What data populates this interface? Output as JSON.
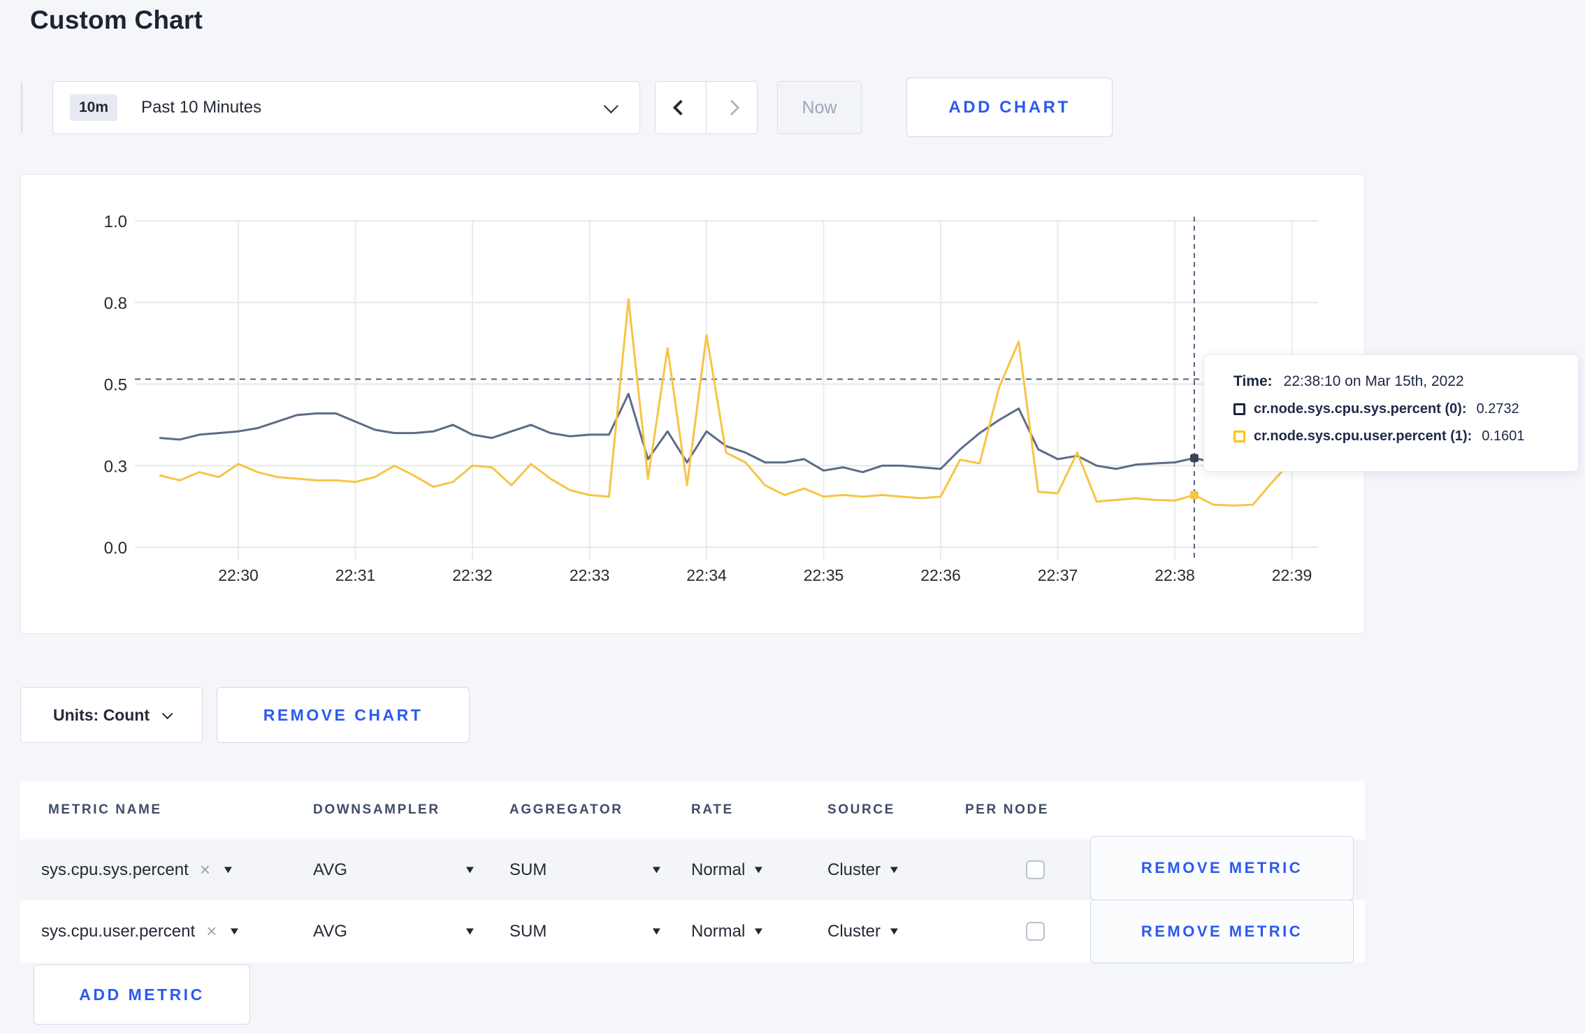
{
  "page": {
    "title": "Custom Chart"
  },
  "toolbar": {
    "range_badge": "10m",
    "range_label": "Past 10 Minutes",
    "now_label": "Now",
    "add_chart_label": "ADD CHART"
  },
  "icons": {
    "close_x": "×",
    "caret_down": "▼"
  },
  "chart_data": {
    "type": "line",
    "title": "",
    "x_axis": {
      "tick_labels": [
        "22:30",
        "22:31",
        "22:32",
        "22:33",
        "22:34",
        "22:35",
        "22:36",
        "22:37",
        "22:38",
        "22:39"
      ]
    },
    "y_axis": {
      "tick_labels": [
        "0.0",
        "0.3",
        "0.5",
        "0.8",
        "1.0"
      ],
      "tick_values": [
        0,
        0.25,
        0.5,
        0.75,
        1.0
      ]
    },
    "ylim": [
      0,
      1
    ],
    "grid": true,
    "start_time": "22:29:20",
    "start_offset_minutes": -0.6667,
    "interval_seconds": 10,
    "series": [
      {
        "name": "cr.node.sys.cpu.sys.percent",
        "color": "#5C6B89",
        "values": [
          0.335,
          0.33,
          0.345,
          0.35,
          0.355,
          0.365,
          0.385,
          0.405,
          0.41,
          0.41,
          0.385,
          0.36,
          0.35,
          0.35,
          0.355,
          0.375,
          0.345,
          0.335,
          0.355,
          0.375,
          0.35,
          0.34,
          0.345,
          0.345,
          0.47,
          0.27,
          0.355,
          0.26,
          0.355,
          0.31,
          0.29,
          0.26,
          0.26,
          0.27,
          0.235,
          0.245,
          0.23,
          0.25,
          0.25,
          0.245,
          0.24,
          0.3,
          0.35,
          0.39,
          0.425,
          0.3,
          0.27,
          0.28,
          0.25,
          0.24,
          0.253,
          0.257,
          0.26,
          0.2732,
          0.26,
          0.29,
          0.285,
          0.295,
          0.29,
          0.315
        ]
      },
      {
        "name": "cr.node.sys.cpu.user.percent",
        "color": "#F7C545",
        "values": [
          0.22,
          0.205,
          0.23,
          0.215,
          0.255,
          0.23,
          0.215,
          0.21,
          0.205,
          0.205,
          0.2,
          0.215,
          0.25,
          0.22,
          0.185,
          0.2,
          0.25,
          0.245,
          0.19,
          0.255,
          0.21,
          0.175,
          0.16,
          0.155,
          0.76,
          0.21,
          0.61,
          0.19,
          0.65,
          0.29,
          0.26,
          0.19,
          0.16,
          0.18,
          0.155,
          0.16,
          0.155,
          0.16,
          0.155,
          0.15,
          0.155,
          0.268,
          0.257,
          0.49,
          0.63,
          0.17,
          0.165,
          0.29,
          0.14,
          0.145,
          0.15,
          0.145,
          0.143,
          0.1601,
          0.13,
          0.128,
          0.13,
          0.2,
          0.265,
          0.245
        ]
      }
    ],
    "threshold_line_value": 0.515,
    "crosshair": {
      "time": "22:38:10",
      "minutes_after_2230": 8.1667,
      "values": [
        0.2732,
        0.1601
      ]
    },
    "legend_position": "tooltip"
  },
  "tooltip": {
    "time_label": "Time:",
    "time_value": "22:38:10 on Mar 15th, 2022",
    "rows": [
      {
        "label": "cr.node.sys.cpu.sys.percent (0):",
        "value": "0.2732"
      },
      {
        "label": "cr.node.sys.cpu.user.percent (1):",
        "value": "0.1601"
      }
    ]
  },
  "chart_footer": {
    "units_label": "Units: Count",
    "remove_chart_label": "REMOVE CHART"
  },
  "metrics_table": {
    "headers": [
      "METRIC NAME",
      "DOWNSAMPLER",
      "AGGREGATOR",
      "RATE",
      "SOURCE",
      "PER NODE"
    ],
    "rows": [
      {
        "metric": "sys.cpu.sys.percent",
        "downsampler": "AVG",
        "aggregator": "SUM",
        "rate": "Normal",
        "source": "Cluster",
        "per_node_checked": false,
        "remove_label": "REMOVE METRIC"
      },
      {
        "metric": "sys.cpu.user.percent",
        "downsampler": "AVG",
        "aggregator": "SUM",
        "rate": "Normal",
        "source": "Cluster",
        "per_node_checked": false,
        "remove_label": "REMOVE METRIC"
      }
    ],
    "add_metric_label": "ADD METRIC"
  }
}
